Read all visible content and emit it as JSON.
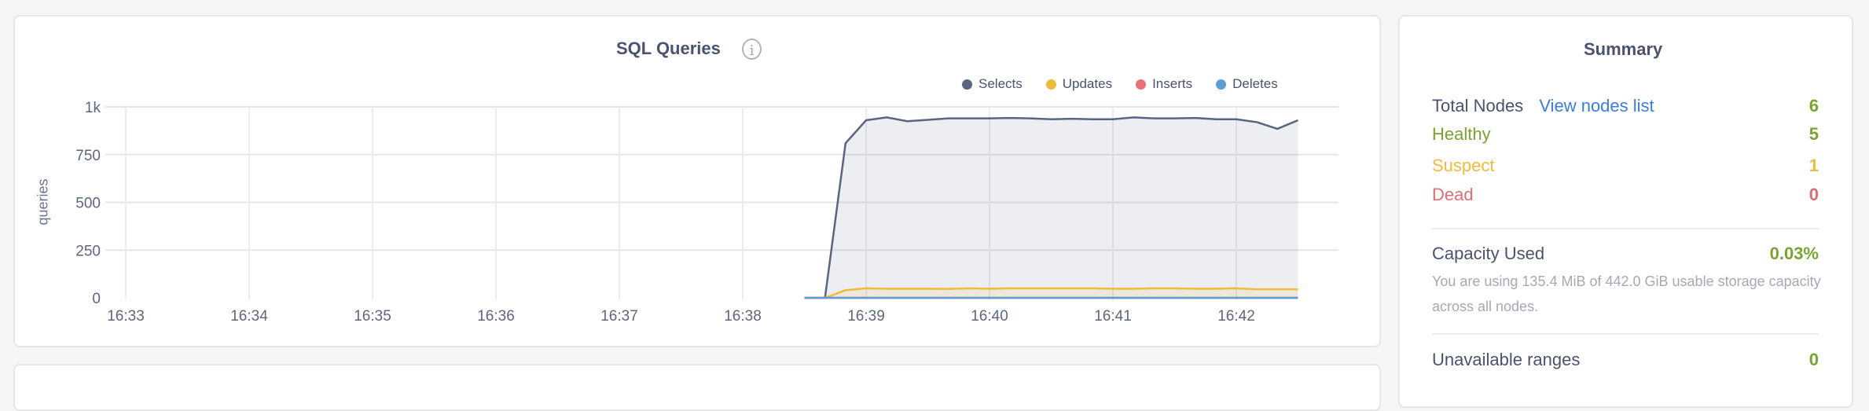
{
  "chart_panel": {
    "title": "SQL Queries",
    "info_icon": "info-icon",
    "chart_data": {
      "type": "area",
      "title": "SQL Queries",
      "ylabel": "queries",
      "xlabel": "",
      "ylim": [
        0,
        1000
      ],
      "y_ticks": [
        "0",
        "250",
        "500",
        "750",
        "1k"
      ],
      "x_ticks": [
        "16:33",
        "16:34",
        "16:35",
        "16:36",
        "16:37",
        "16:38",
        "16:39",
        "16:40",
        "16:41",
        "16:42"
      ],
      "grid": true,
      "legend_position": "top-right",
      "x": [
        "16:38:30",
        "16:38:40",
        "16:38:50",
        "16:39:00",
        "16:39:10",
        "16:39:20",
        "16:39:30",
        "16:39:40",
        "16:39:50",
        "16:40:00",
        "16:40:10",
        "16:40:20",
        "16:40:30",
        "16:40:40",
        "16:40:50",
        "16:41:00",
        "16:41:10",
        "16:41:20",
        "16:41:30",
        "16:41:40",
        "16:41:50",
        "16:42:00",
        "16:42:10",
        "16:42:20",
        "16:42:30"
      ],
      "series": [
        {
          "name": "Selects",
          "color": "#5b6583",
          "values": [
            0,
            0,
            810,
            930,
            945,
            925,
            932,
            940,
            940,
            940,
            942,
            940,
            935,
            938,
            935,
            935,
            945,
            940,
            940,
            942,
            935,
            935,
            920,
            885,
            930
          ]
        },
        {
          "name": "Updates",
          "color": "#efbb3a",
          "values": [
            0,
            0,
            40,
            50,
            48,
            48,
            48,
            47,
            50,
            48,
            50,
            50,
            50,
            50,
            50,
            48,
            48,
            50,
            50,
            48,
            48,
            50,
            45,
            45,
            45
          ]
        },
        {
          "name": "Inserts",
          "color": "#e57373",
          "values": [
            0,
            0,
            0,
            0,
            0,
            0,
            0,
            0,
            0,
            0,
            0,
            0,
            0,
            0,
            0,
            0,
            0,
            0,
            0,
            0,
            0,
            0,
            0,
            0,
            0
          ]
        },
        {
          "name": "Deletes",
          "color": "#5e9fd3",
          "values": [
            0,
            0,
            0,
            0,
            0,
            0,
            0,
            0,
            0,
            0,
            0,
            0,
            0,
            0,
            0,
            0,
            0,
            0,
            0,
            0,
            0,
            0,
            0,
            0,
            0
          ]
        }
      ]
    }
  },
  "summary": {
    "title": "Summary",
    "total_nodes_label": "Total Nodes",
    "view_nodes_link": "View nodes list",
    "total_nodes": "6",
    "healthy_label": "Healthy",
    "healthy": "5",
    "suspect_label": "Suspect",
    "suspect": "1",
    "dead_label": "Dead",
    "dead": "0",
    "capacity_label": "Capacity Used",
    "capacity_value": "0.03%",
    "capacity_desc": "You are using 135.4 MiB of 442.0 GiB usable storage capacity across all nodes.",
    "unavailable_label": "Unavailable ranges",
    "unavailable_value": "0",
    "colors": {
      "text": "#4a5270",
      "green": "#78a52f",
      "yellow": "#efbb3a",
      "red": "#e06c75",
      "link": "#3a7de1"
    }
  }
}
